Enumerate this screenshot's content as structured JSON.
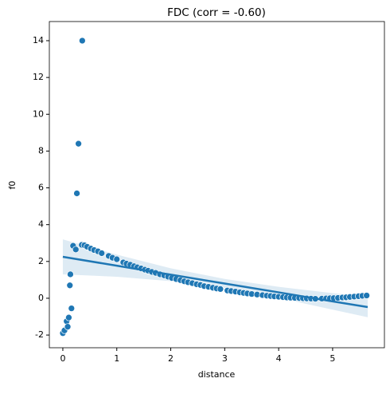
{
  "chart_data": {
    "type": "scatter",
    "title": "FDC (corr = -0.60)",
    "x_label": "distance",
    "y_label": "f0",
    "color": "#1f77b4",
    "x": [
      0.0,
      0.03,
      0.07,
      0.09,
      0.11,
      0.13,
      0.14,
      0.16,
      0.19,
      0.24,
      0.26,
      0.29,
      0.36,
      0.35,
      0.4,
      0.45,
      0.52,
      0.58,
      0.65,
      0.72,
      0.85,
      0.92,
      1.0,
      1.12,
      1.18,
      1.25,
      1.32,
      1.38,
      1.45,
      1.52,
      1.58,
      1.65,
      1.72,
      1.8,
      1.88,
      1.95,
      2.02,
      2.1,
      2.18,
      2.25,
      2.32,
      2.4,
      2.48,
      2.55,
      2.62,
      2.7,
      2.78,
      2.85,
      2.92,
      3.05,
      3.12,
      3.2,
      3.28,
      3.35,
      3.42,
      3.5,
      3.6,
      3.7,
      3.78,
      3.85,
      3.92,
      4.0,
      4.08,
      4.15,
      4.22,
      4.3,
      4.38,
      4.45,
      4.52,
      4.6,
      4.68,
      4.8,
      4.88,
      4.95,
      5.02,
      5.1,
      5.18,
      5.25,
      5.32,
      5.4,
      5.48,
      5.55,
      5.63
    ],
    "values": [
      -1.9,
      -1.75,
      -1.25,
      -1.55,
      -1.05,
      0.7,
      1.3,
      -0.55,
      2.85,
      2.65,
      5.7,
      8.4,
      14.0,
      2.9,
      2.88,
      2.8,
      2.7,
      2.62,
      2.55,
      2.45,
      2.3,
      2.2,
      2.12,
      1.95,
      1.88,
      1.82,
      1.74,
      1.68,
      1.62,
      1.55,
      1.5,
      1.43,
      1.38,
      1.3,
      1.24,
      1.17,
      1.1,
      1.04,
      0.98,
      0.92,
      0.87,
      0.82,
      0.76,
      0.72,
      0.66,
      0.62,
      0.57,
      0.53,
      0.5,
      0.42,
      0.39,
      0.36,
      0.32,
      0.29,
      0.26,
      0.23,
      0.2,
      0.17,
      0.14,
      0.12,
      0.1,
      0.08,
      0.06,
      0.04,
      0.03,
      0.02,
      0.01,
      0.0,
      -0.01,
      -0.02,
      -0.03,
      -0.02,
      -0.01,
      0.0,
      0.01,
      0.02,
      0.04,
      0.05,
      0.07,
      0.09,
      0.11,
      0.13,
      0.15
    ],
    "fit": {
      "x": [
        0,
        1,
        2,
        3,
        4,
        5,
        5.65
      ],
      "values": [
        2.25,
        1.77,
        1.28,
        0.8,
        0.32,
        -0.17,
        -0.48
      ],
      "upper": [
        3.2,
        2.37,
        1.63,
        1.05,
        0.62,
        0.28,
        0.07
      ],
      "lower": [
        1.3,
        1.17,
        0.93,
        0.55,
        0.02,
        -0.62,
        -1.03
      ]
    },
    "xlim": [
      -0.25,
      5.96
    ],
    "ylim": [
      -2.69,
      15.04
    ],
    "xticks": [
      0,
      1,
      2,
      3,
      4,
      5
    ],
    "yticks": [
      -2,
      0,
      2,
      4,
      6,
      8,
      10,
      12,
      14
    ]
  }
}
